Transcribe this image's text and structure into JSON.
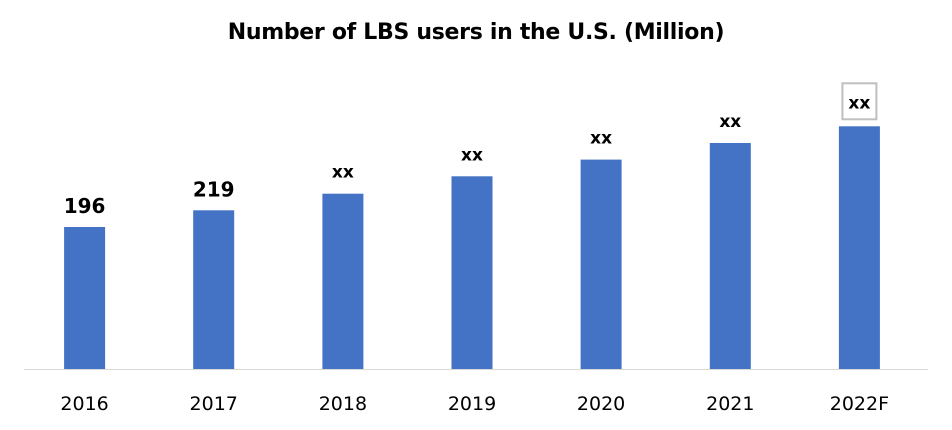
{
  "chart_data": {
    "type": "bar",
    "title": "Number of LBS users in the U.S. (Million)",
    "xlabel": "",
    "ylabel": "",
    "categories": [
      "2016",
      "2017",
      "2018",
      "2019",
      "2020",
      "2021",
      "2022F"
    ],
    "values": [
      196,
      219,
      242,
      266,
      289,
      312,
      335
    ],
    "data_labels": [
      "196",
      "219",
      "xx",
      "xx",
      "xx",
      "xx",
      "xx"
    ],
    "boxed_label_index": 6,
    "ylim": [
      0,
      335
    ],
    "grid": false,
    "legend": "none",
    "colors": {
      "bar": "#4472C4",
      "axis": "#D9D9D9",
      "label_box": "#BFBFBF"
    }
  }
}
